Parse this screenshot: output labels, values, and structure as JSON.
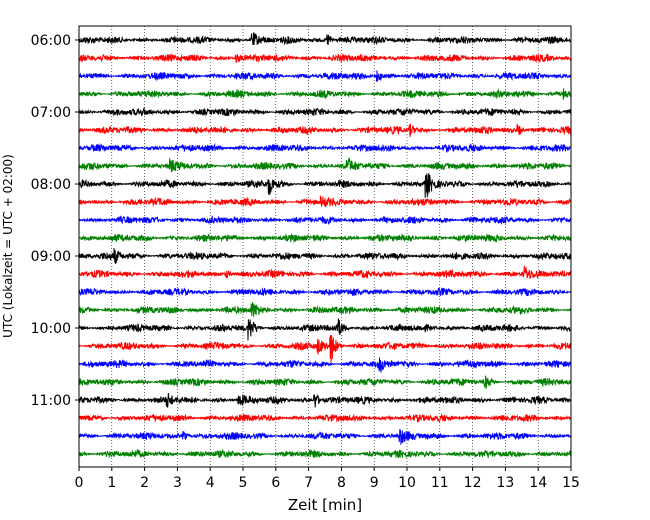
{
  "chart_data": {
    "type": "line",
    "title": "",
    "xlabel": "Zeit  [min]",
    "ylabel": "UTC (Lokalzeit = UTC + 02:00)",
    "xlim": [
      0,
      15
    ],
    "x_ticks": [
      "0",
      "1",
      "2",
      "3",
      "4",
      "5",
      "6",
      "7",
      "8",
      "9",
      "10",
      "11",
      "12",
      "13",
      "14",
      "15"
    ],
    "y_ticks": [
      "06:00",
      "07:00",
      "08:00",
      "09:00",
      "10:00",
      "11:00"
    ],
    "y_tick_rows": [
      0,
      4,
      8,
      12,
      16,
      20
    ],
    "grid": "vertical dotted lines at each minute",
    "trace_interval_minutes": 15,
    "trace_start": "06:00",
    "trace_count": 24,
    "colors": [
      "#000000",
      "#ff0000",
      "#0000ff",
      "#008000"
    ],
    "events": [
      {
        "row": 0,
        "minute": 5.3,
        "amp": 0.5
      },
      {
        "row": 0,
        "minute": 7.6,
        "amp": 0.45
      },
      {
        "row": 1,
        "minute": 4.8,
        "amp": 0.35
      },
      {
        "row": 2,
        "minute": 9.1,
        "amp": 0.4
      },
      {
        "row": 3,
        "minute": 14.8,
        "amp": 0.35
      },
      {
        "row": 5,
        "minute": 10.1,
        "amp": 0.4
      },
      {
        "row": 5,
        "minute": 13.4,
        "amp": 0.35
      },
      {
        "row": 7,
        "minute": 2.8,
        "amp": 0.35
      },
      {
        "row": 7,
        "minute": 8.2,
        "amp": 0.4
      },
      {
        "row": 8,
        "minute": 5.8,
        "amp": 0.75
      },
      {
        "row": 8,
        "minute": 10.6,
        "amp": 0.8
      },
      {
        "row": 9,
        "minute": 7.4,
        "amp": 0.35
      },
      {
        "row": 12,
        "minute": 1.1,
        "amp": 0.4
      },
      {
        "row": 13,
        "minute": 13.6,
        "amp": 0.5
      },
      {
        "row": 13,
        "minute": 4.5,
        "amp": 0.3
      },
      {
        "row": 15,
        "minute": 5.3,
        "amp": 0.4
      },
      {
        "row": 16,
        "minute": 5.2,
        "amp": 0.7
      },
      {
        "row": 16,
        "minute": 7.9,
        "amp": 0.5
      },
      {
        "row": 17,
        "minute": 7.7,
        "amp": 0.95
      },
      {
        "row": 17,
        "minute": 7.3,
        "amp": 0.5
      },
      {
        "row": 18,
        "minute": 9.2,
        "amp": 0.35
      },
      {
        "row": 19,
        "minute": 12.4,
        "amp": 0.35
      },
      {
        "row": 20,
        "minute": 2.7,
        "amp": 0.4
      },
      {
        "row": 20,
        "minute": 4.9,
        "amp": 0.45
      },
      {
        "row": 20,
        "minute": 7.2,
        "amp": 0.55
      },
      {
        "row": 22,
        "minute": 9.8,
        "amp": 0.5
      },
      {
        "row": 22,
        "minute": 3.2,
        "amp": 0.3
      }
    ]
  }
}
